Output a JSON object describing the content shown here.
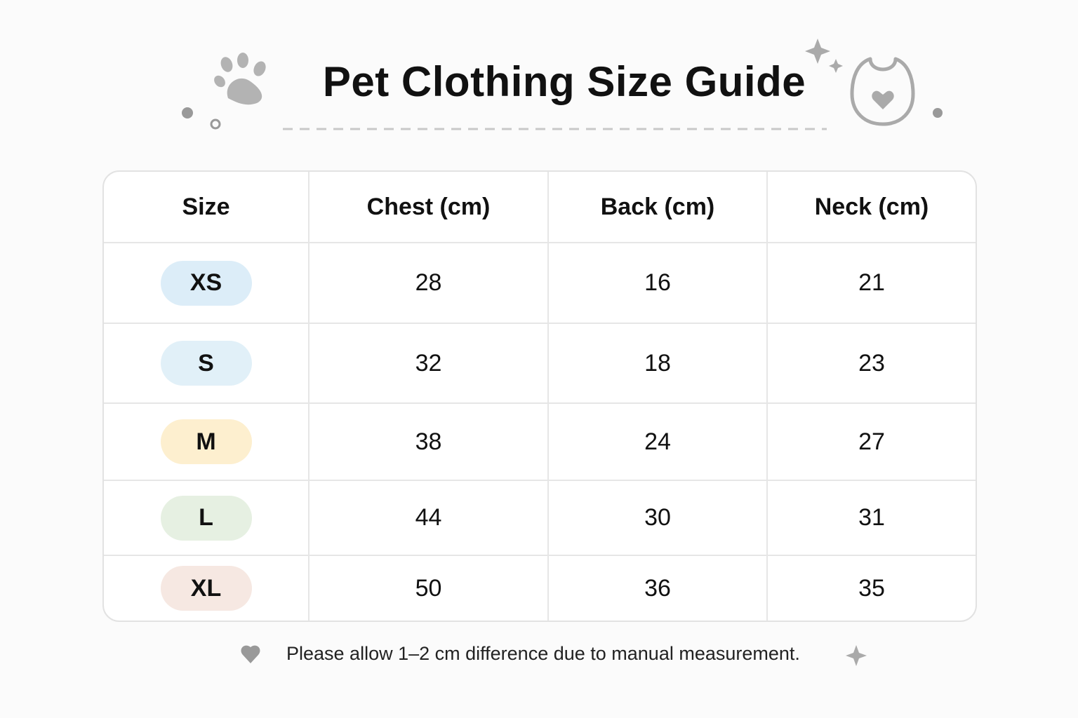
{
  "title": "Pet Clothing Size Guide",
  "table": {
    "header": [
      "Size",
      "Chest (cm)",
      "Back (cm)",
      "Neck (cm)"
    ],
    "rows": [
      [
        "XS",
        28,
        16,
        21
      ],
      [
        "S",
        32,
        18,
        23
      ],
      [
        "M",
        38,
        24,
        27
      ],
      [
        "L",
        44,
        30,
        31
      ],
      [
        "XL",
        50,
        36,
        35
      ]
    ]
  },
  "footnote": "Please allow 1–2 cm difference due to manual measurement."
}
